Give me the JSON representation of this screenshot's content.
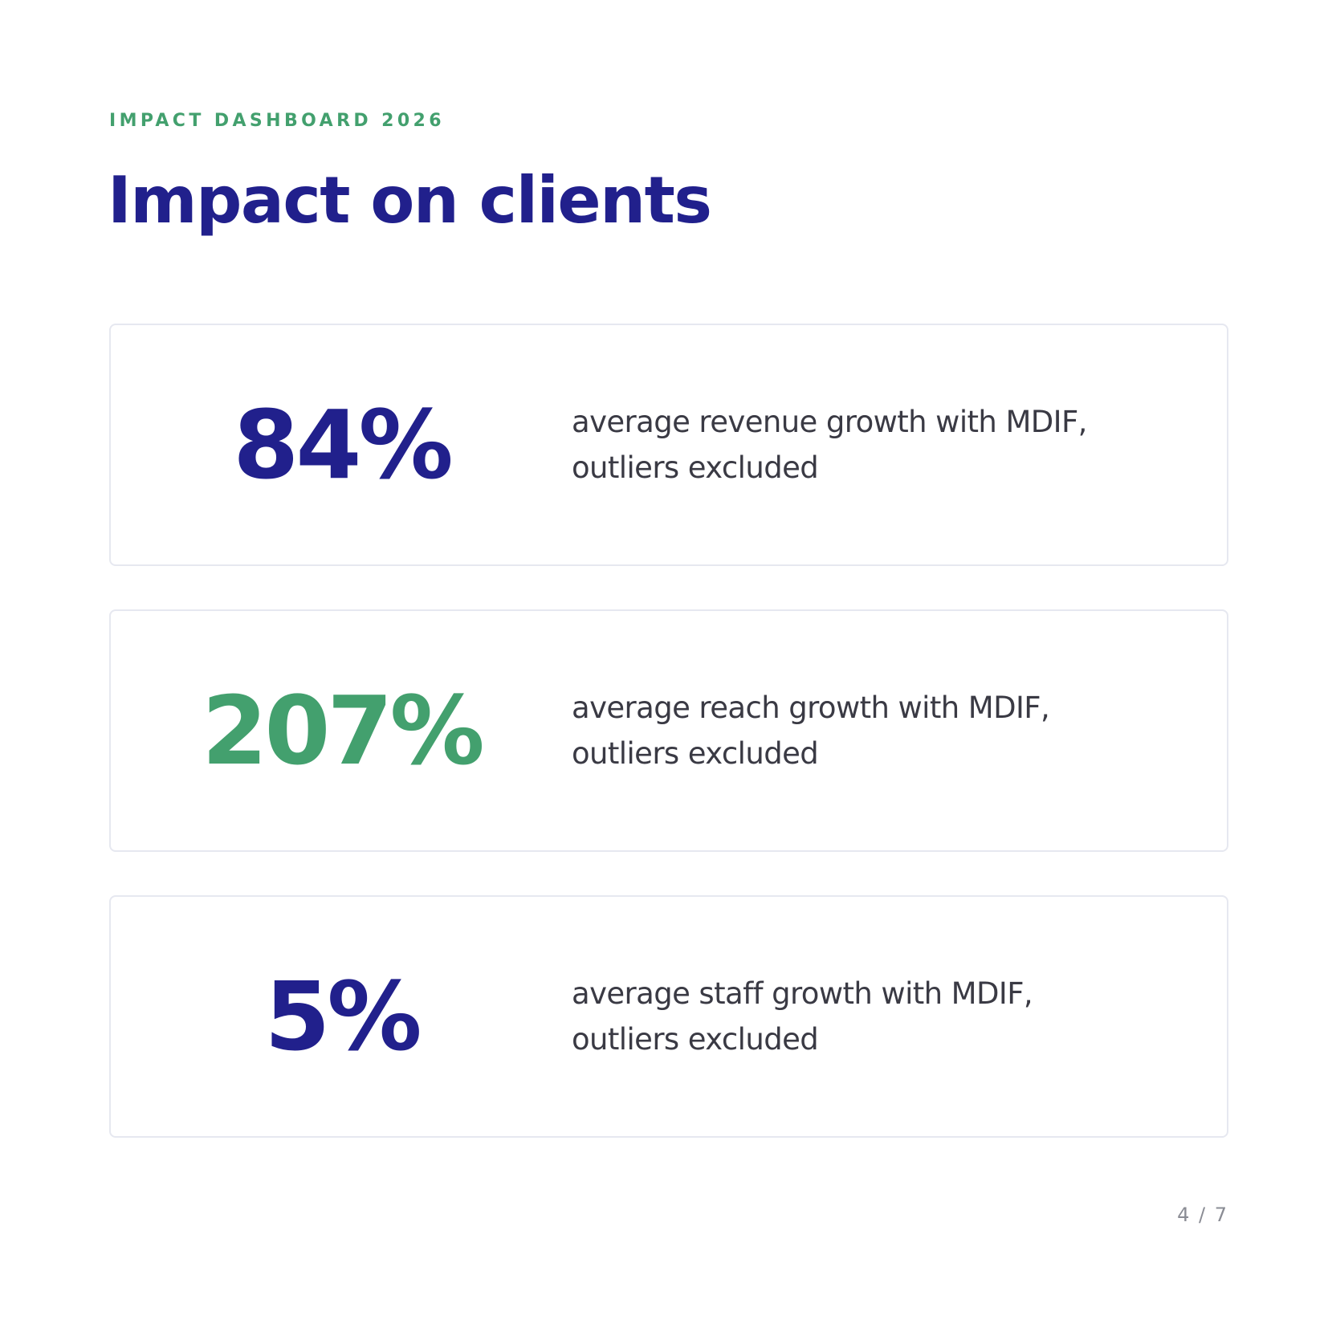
{
  "header": {
    "eyebrow": "IMPACT DASHBOARD 2026",
    "title": "Impact on clients"
  },
  "stats": [
    {
      "value": "84%",
      "color": "#21208c",
      "description": "average revenue growth with MDIF, outliers excluded"
    },
    {
      "value": "207%",
      "color": "#43a06e",
      "description": "average reach growth with MDIF, outliers excluded"
    },
    {
      "value": "5%",
      "color": "#21208c",
      "description": "average staff growth with MDIF, outliers excluded"
    }
  ],
  "footer": {
    "page_number": "4 / 7"
  }
}
